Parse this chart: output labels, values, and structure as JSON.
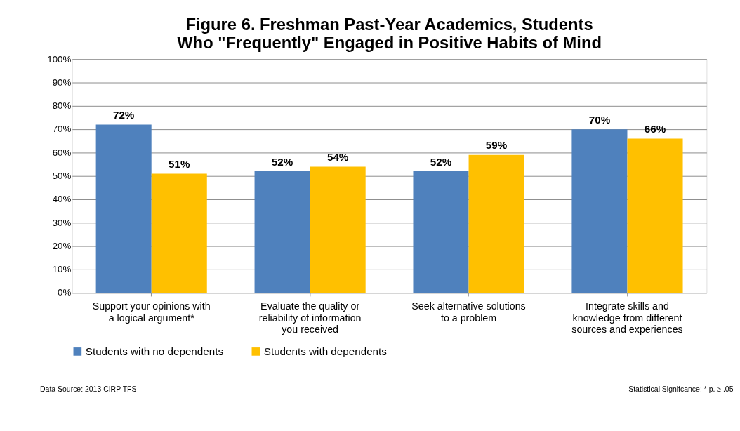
{
  "chart_data": {
    "type": "bar",
    "title": "Figure 6.  Freshman Past-Year Academics, Students Who \"Frequently\" Engaged in Positive Habits of Mind",
    "categories": [
      "Support your opinions with a logical argument*",
      "Evaluate the quality or reliability of information you received",
      "Seek alternative solutions to a problem",
      "Integrate skills and knowledge from different sources and experiences"
    ],
    "series": [
      {
        "name": "Students with no dependents",
        "color": "#4f81bd",
        "values": [
          72,
          52,
          52,
          70
        ]
      },
      {
        "name": "Students with dependents",
        "color": "#ffc000",
        "values": [
          51,
          54,
          59,
          66
        ]
      }
    ],
    "ylim": [
      0,
      100
    ],
    "yticks": [
      {
        "value": 0,
        "label": "0%"
      },
      {
        "value": 10,
        "label": "10%"
      },
      {
        "value": 20,
        "label": "20%"
      },
      {
        "value": 30,
        "label": "30%"
      },
      {
        "value": 40,
        "label": "40%"
      },
      {
        "value": 50,
        "label": "50%"
      },
      {
        "value": 60,
        "label": "60%"
      },
      {
        "value": 70,
        "label": "70%"
      },
      {
        "value": 80,
        "label": "80%"
      },
      {
        "value": 90,
        "label": "90%"
      },
      {
        "value": 100,
        "label": "100%"
      }
    ],
    "value_labels": [
      [
        "72%",
        "52%",
        "52%",
        "70%"
      ],
      [
        "51%",
        "54%",
        "59%",
        "66%"
      ]
    ],
    "grid": "y",
    "legend": "bottom",
    "annotations": [
      "Data Source: 2013  CIRP TFS",
      "Statistical Signifcance: * p. ≥ .05"
    ]
  }
}
